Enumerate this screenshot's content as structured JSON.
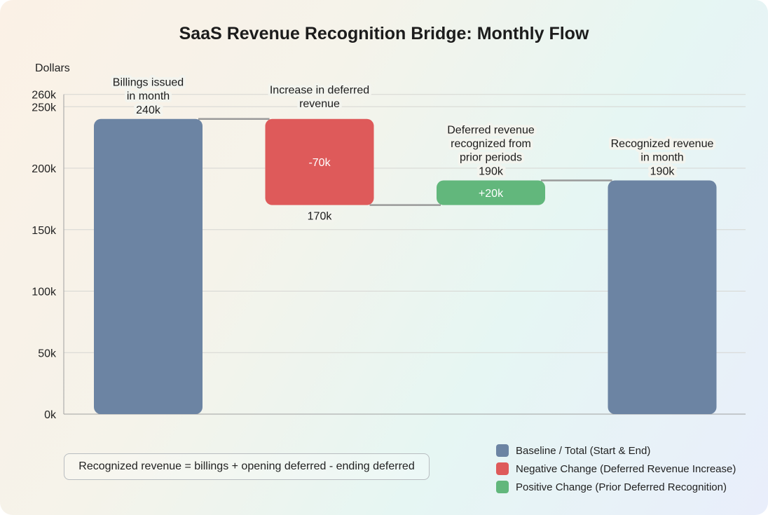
{
  "chart_data": {
    "type": "waterfall",
    "title": "SaaS Revenue Recognition Bridge: Monthly Flow",
    "ylabel": "Dollars",
    "ylim": [
      0,
      260000
    ],
    "yticks": [
      {
        "value": 0,
        "label": "0k"
      },
      {
        "value": 50000,
        "label": "50k"
      },
      {
        "value": 100000,
        "label": "100k"
      },
      {
        "value": 150000,
        "label": "150k"
      },
      {
        "value": 200000,
        "label": "200k"
      },
      {
        "value": 250000,
        "label": "250k"
      },
      {
        "value": 260000,
        "label": "260k"
      }
    ],
    "grid": true,
    "bars": [
      {
        "category": [
          "Billings issued",
          "in month"
        ],
        "kind": "total",
        "start": 0,
        "end": 240000,
        "value_label": "240k",
        "bar_label": ""
      },
      {
        "category": [
          "Increase in deferred",
          "revenue"
        ],
        "kind": "negative",
        "start": 240000,
        "end": 170000,
        "value_label": "170k",
        "bar_label": "-70k"
      },
      {
        "category": [
          "Deferred revenue",
          "recognized from",
          "prior periods"
        ],
        "kind": "positive",
        "start": 170000,
        "end": 190000,
        "value_label": "190k",
        "bar_label": "+20k"
      },
      {
        "category": [
          "Recognized revenue",
          "in month"
        ],
        "kind": "total",
        "start": 0,
        "end": 190000,
        "value_label": "190k",
        "bar_label": ""
      }
    ],
    "colors": {
      "total": "#6c84a3",
      "negative": "#de5a5a",
      "positive": "#62b77c",
      "connector": "#9a9a9a"
    },
    "legend": {
      "position": "bottom-right",
      "items": [
        {
          "label": "Baseline / Total (Start & End)",
          "color": "#6c84a3"
        },
        {
          "label": "Negative Change (Deferred Revenue Increase)",
          "color": "#de5a5a"
        },
        {
          "label": "Positive Change (Prior Deferred Recognition)",
          "color": "#62b77c"
        }
      ]
    },
    "annotation": "Recognized revenue = billings + opening deferred - ending deferred"
  }
}
